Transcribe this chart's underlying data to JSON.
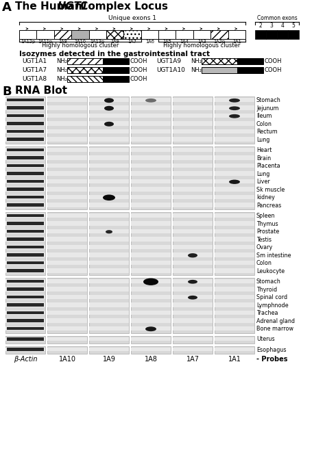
{
  "title_A": "The Human ",
  "title_italic": "UGT1",
  "title_end": " Complex Locus",
  "section_A_label": "A",
  "section_B_label": "B",
  "unique_exons_label": "Unique exons 1",
  "common_exons_label": "Common exons",
  "locus_exons": [
    "1A12p",
    "1A11p",
    "1A8",
    "1A10",
    "1A13p",
    "1A9",
    "1A7",
    "1A6",
    "1A5",
    "1A4",
    "1A3",
    "1A2p",
    "1A1"
  ],
  "common_exon_nums": [
    "2",
    "3",
    "4",
    "5"
  ],
  "cluster1_label": "Highly homologous cluster",
  "cluster2_label": "Highly homologous cluster",
  "isozyme_title": "Isozymes detected in the gastrointestinal tract",
  "blot_groups": [
    {
      "tissues": [
        "Stomach",
        "Jejunum",
        "Ileum",
        "Colon",
        "Rectum",
        "Lung"
      ]
    },
    {
      "tissues": [
        "Heart",
        "Brain",
        "Placenta",
        "Lung",
        "Liver",
        "Sk muscle",
        "kidney",
        "Pancreas"
      ]
    },
    {
      "tissues": [
        "Spleen",
        "Thymus",
        "Prostate",
        "Testis",
        "Ovary",
        "Sm intestine",
        "Colon",
        "Leukocyte"
      ]
    },
    {
      "tissues": [
        "Stomach",
        "Thyroid",
        "Spinal cord",
        "Lymphnode",
        "Trachea",
        "Adrenal gland",
        "Bone marrow"
      ]
    }
  ],
  "blot_single": [
    "Uterus",
    "Esophagus"
  ],
  "probes": [
    "β-Actin",
    "1A10",
    "1A9",
    "1A8",
    "1A7",
    "1A1"
  ],
  "probes_label": "- Probes",
  "bg_color": "#ffffff"
}
